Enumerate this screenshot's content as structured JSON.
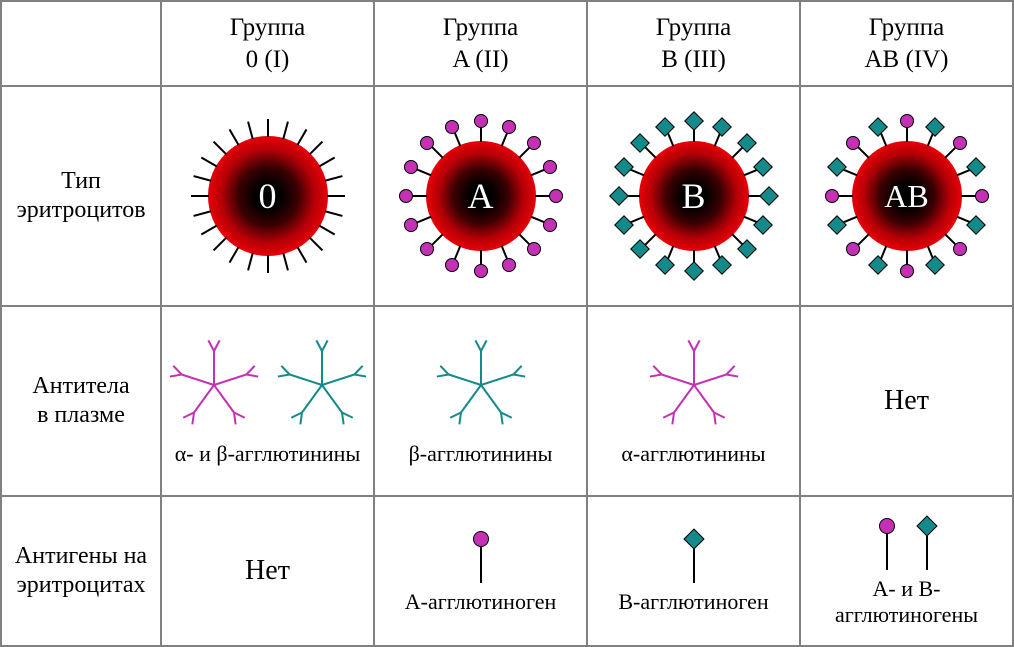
{
  "colors": {
    "magenta": "#c431b4",
    "teal": "#148a8a",
    "border": "#808080",
    "text": "#000000",
    "white": "#ffffff",
    "rbc_grad": [
      "#000000",
      "#3a0002",
      "#b40006",
      "#ed0008",
      "#f40a0a"
    ]
  },
  "columns": [
    {
      "line1": "Группа",
      "line2": "0 (I)"
    },
    {
      "line1": "Группа",
      "line2": "A (II)"
    },
    {
      "line1": "Группа",
      "line2": "B (III)"
    },
    {
      "line1": "Группа",
      "line2": "AB (IV)"
    }
  ],
  "rows": {
    "erythro": {
      "line1": "Тип",
      "line2": "эритроцитов"
    },
    "antibody": {
      "line1": "Антитела",
      "line2": "в плазме"
    },
    "antigen": {
      "line1": "Антигены на",
      "line2": "эритроцитах"
    }
  },
  "erythrocytes": {
    "O": {
      "letter": "0",
      "diameter": 120,
      "fontSize": 36,
      "surface": {
        "type": "spike",
        "count": 24,
        "stem": 18
      }
    },
    "A": {
      "letter": "A",
      "diameter": 110,
      "fontSize": 36,
      "surface": {
        "type": "lolliA",
        "count": 16,
        "stem": 20
      }
    },
    "B": {
      "letter": "B",
      "diameter": 110,
      "fontSize": 36,
      "surface": {
        "type": "lolliB",
        "count": 16,
        "stem": 20
      }
    },
    "AB": {
      "letter": "AB",
      "diameter": 110,
      "fontSize": 32,
      "surface": {
        "type": "mixAB",
        "count": 16,
        "stem": 20
      }
    }
  },
  "antibodies": {
    "O": {
      "show": [
        "alpha",
        "beta"
      ],
      "caption": "α- и β-агглютинины"
    },
    "A": {
      "show": [
        "beta"
      ],
      "caption": "β-агглютинины"
    },
    "B": {
      "show": [
        "alpha"
      ],
      "caption": "α-агглютинины"
    },
    "AB": {
      "show": [],
      "caption": "Нет"
    }
  },
  "antigens": {
    "O": {
      "markers": [],
      "caption": "Нет"
    },
    "A": {
      "markers": [
        "A"
      ],
      "caption": "А-агглютиноген"
    },
    "B": {
      "markers": [
        "B"
      ],
      "caption": "В-агглютиноген"
    },
    "AB": {
      "markers": [
        "A",
        "B"
      ],
      "caption_l1": "А- и В-",
      "caption_l2": "агглютиногены"
    }
  },
  "antibody_svg": {
    "width": 90,
    "height": 100,
    "arms": 5,
    "arm_len": 34,
    "fork": 12,
    "alpha_color": "#c431b4",
    "beta_color": "#148a8a",
    "stroke_w": 2
  }
}
